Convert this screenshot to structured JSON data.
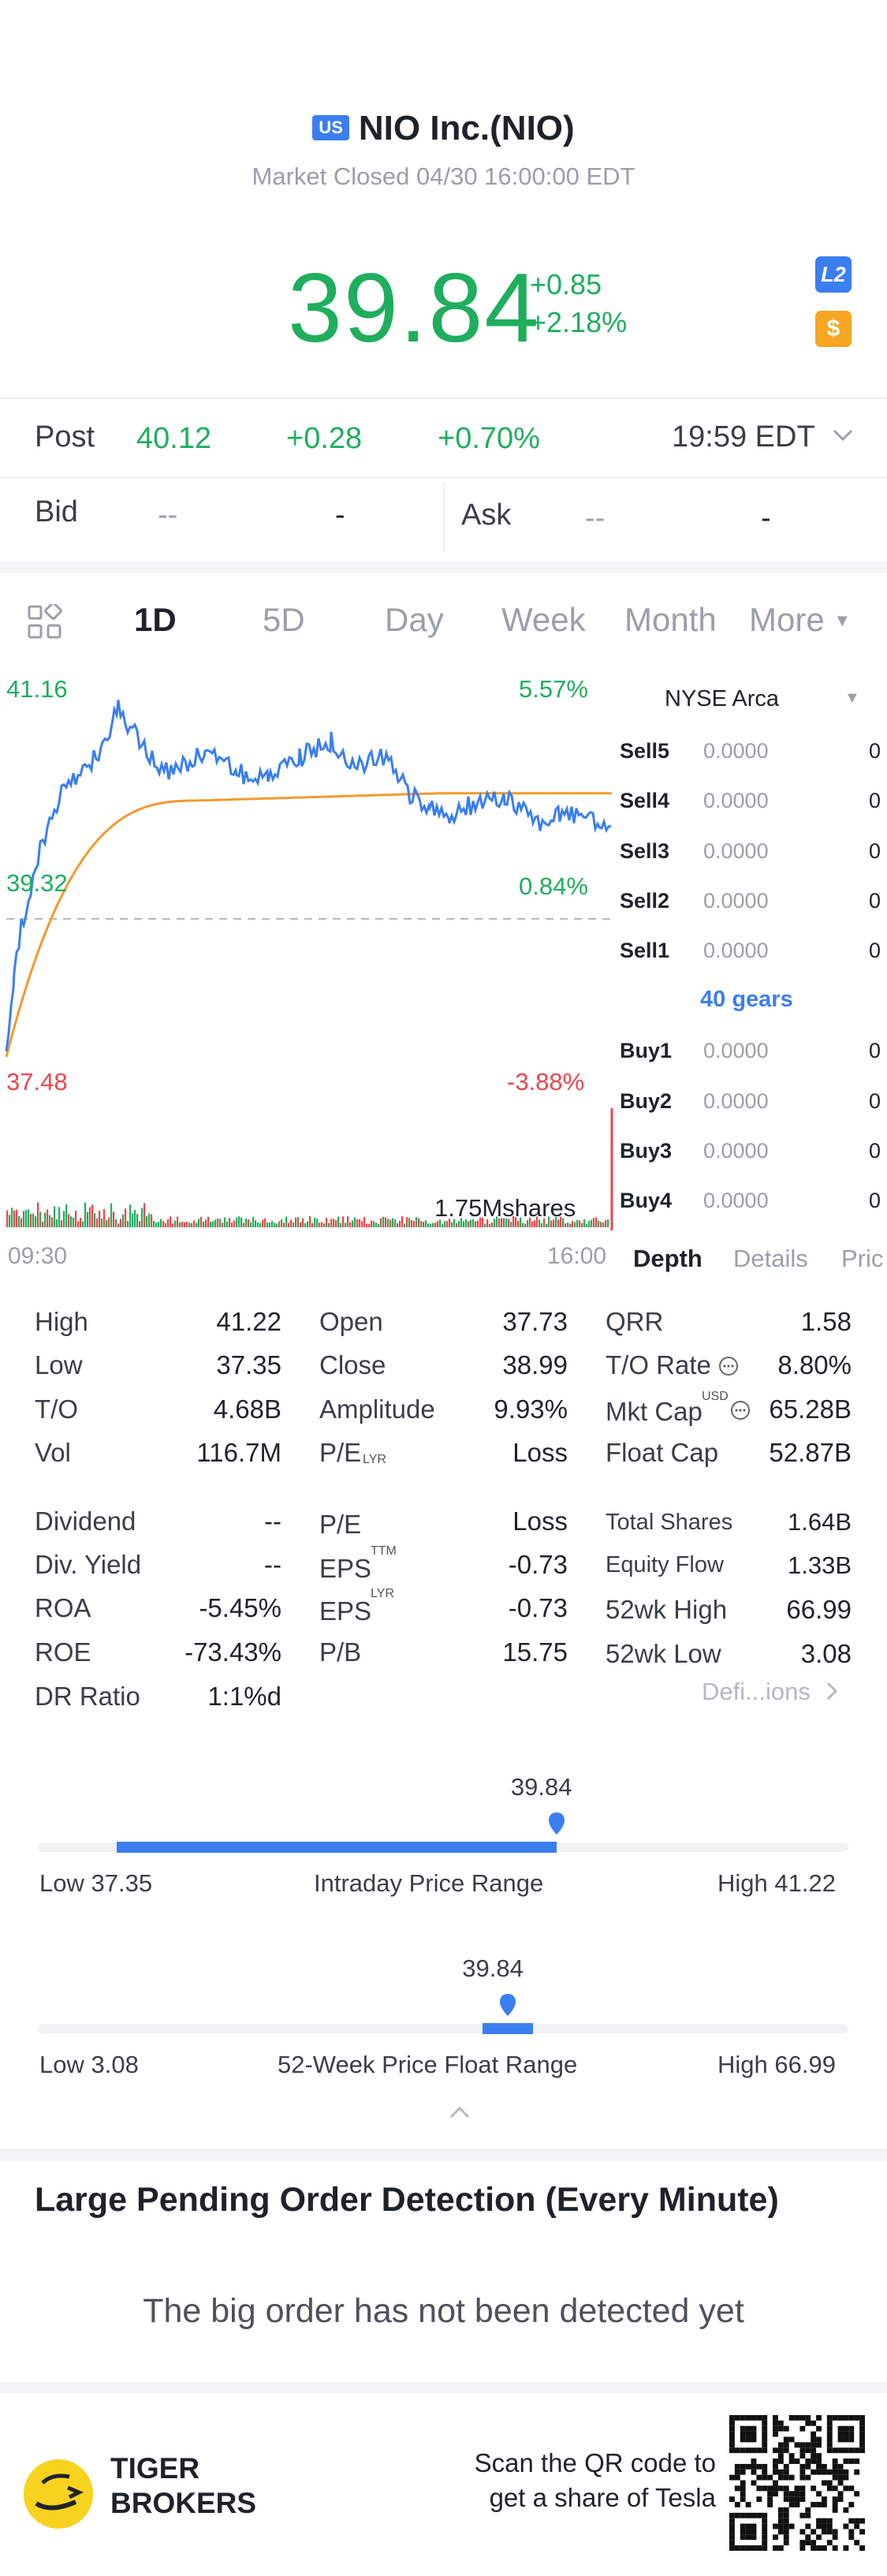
{
  "header": {
    "region_badge": "US",
    "title": "NIO Inc.(NIO)",
    "market_status": "Market Closed 04/30 16:00:00 EDT",
    "price": "39.84",
    "change": "+0.85",
    "change_pct": "+2.18%",
    "l2_badge": "L2",
    "dollar_badge": "$"
  },
  "post": {
    "label": "Post",
    "price": "40.12",
    "change": "+0.28",
    "change_pct": "+0.70%",
    "time": "19:59 EDT"
  },
  "bidask": {
    "bid_label": "Bid",
    "bid_price": "--",
    "bid_size": "-",
    "ask_label": "Ask",
    "ask_price": "--",
    "ask_size": "-"
  },
  "tabs": [
    {
      "label": "1D"
    },
    {
      "label": "5D"
    },
    {
      "label": "Day"
    },
    {
      "label": "Week"
    },
    {
      "label": "Month"
    },
    {
      "label": "More"
    }
  ],
  "chart": {
    "high_price": "41.16",
    "high_pct": "5.57%",
    "mid_price": "39.32",
    "mid_pct": "0.84%",
    "low_price": "37.48",
    "low_pct": "-3.88%",
    "volume_label": "1.75Mshares",
    "start_time": "09:30",
    "end_time": "16:00",
    "price_color": "#3b7ef0",
    "avg_color": "#f29a2e"
  },
  "depth": {
    "exchange": "NYSE Arca",
    "sells": [
      {
        "name": "Sell5",
        "price": "0.0000",
        "qty": "0"
      },
      {
        "name": "Sell4",
        "price": "0.0000",
        "qty": "0"
      },
      {
        "name": "Sell3",
        "price": "0.0000",
        "qty": "0"
      },
      {
        "name": "Sell2",
        "price": "0.0000",
        "qty": "0"
      },
      {
        "name": "Sell1",
        "price": "0.0000",
        "qty": "0"
      }
    ],
    "gears": "40 gears",
    "buys": [
      {
        "name": "Buy1",
        "price": "0.0000",
        "qty": "0"
      },
      {
        "name": "Buy2",
        "price": "0.0000",
        "qty": "0"
      },
      {
        "name": "Buy3",
        "price": "0.0000",
        "qty": "0"
      },
      {
        "name": "Buy4",
        "price": "0.0000",
        "qty": "0"
      }
    ],
    "tab_depth": "Depth",
    "tab_details": "Details",
    "tab_price": "Pric"
  },
  "stats": {
    "high_label": "High",
    "high": "41.22",
    "low_label": "Low",
    "low": "37.35",
    "to_label": "T/O",
    "to": "4.68B",
    "vol_label": "Vol",
    "vol": "116.7M",
    "open_label": "Open",
    "open": "37.73",
    "close_label": "Close",
    "close": "38.99",
    "amp_label": "Amplitude",
    "amp": "9.93%",
    "pe_label": "P/E",
    "pe": "Loss",
    "qrr_label": "QRR",
    "qrr": "1.58",
    "torate_label": "T/O Rate",
    "torate": "8.80%",
    "mktcap_label": "Mkt Cap",
    "mktcap_sup": "USD",
    "mktcap": "65.28B",
    "floatcap_label": "Float Cap",
    "floatcap": "52.87B",
    "div_label": "Dividend",
    "div": "--",
    "divy_label": "Div. Yield",
    "divy": "--",
    "roa_label": "ROA",
    "roa": "-5.45%",
    "roe_label": "ROE",
    "roe": "-73.43%",
    "dr_label": "DR Ratio",
    "dr": "1:1%d",
    "pelyr_label": "P/E",
    "pelyr_sup": "LYR",
    "pelyr": "Loss",
    "epsttm_label": "EPS",
    "epsttm_sup": "TTM",
    "epsttm": "-0.73",
    "epslyr_label": "EPS",
    "epslyr_sup": "LYR",
    "epslyr": "-0.73",
    "pb_label": "P/B",
    "pb": "15.75",
    "totsh_label": "Total Shares",
    "totsh": "1.64B",
    "eqflow_label": "Equity Flow",
    "eqflow": "1.33B",
    "wk52h_label": "52wk High",
    "wk52h": "66.99",
    "wk52l_label": "52wk Low",
    "wk52l": "3.08",
    "definitions": "Defi...ions"
  },
  "intraday_range": {
    "value": "39.84",
    "low_label": "Low 37.35",
    "title": "Intraday Price Range",
    "high_label": "High 41.22",
    "position_fraction": 0.64
  },
  "week52_range": {
    "value": "39.84",
    "low_label": "Low 3.08",
    "title": "52-Week Price Float Range",
    "high_label": "High 66.99",
    "position_fraction": 0.58
  },
  "pending": {
    "title": "Large Pending Order Detection (Every Minute)",
    "empty_text": "The big order has not been detected yet"
  },
  "footer": {
    "brand_line1": "TIGER",
    "brand_line2": "BROKERS",
    "scan_line1": "Scan the QR code to",
    "scan_line2": "get a share of Tesla"
  }
}
